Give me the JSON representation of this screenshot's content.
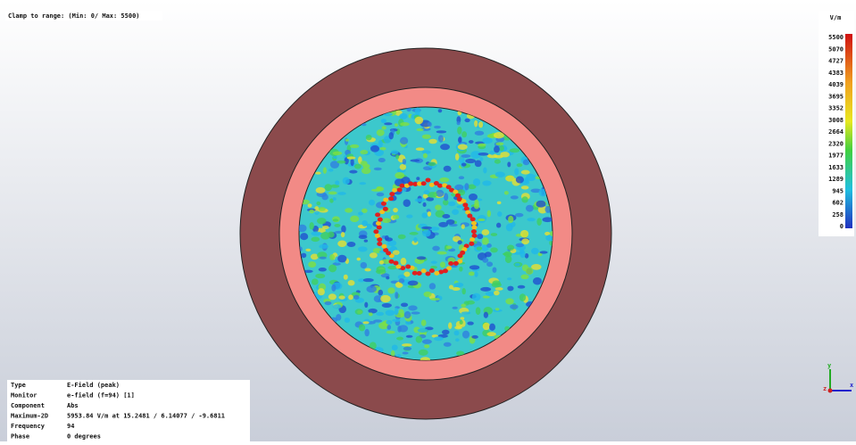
{
  "header": {
    "clamp": "Clamp to range: (Min: 0/ Max: 5500)"
  },
  "colorbar": {
    "unit": "V/m",
    "ticks": [
      5500,
      5070,
      4727,
      4383,
      4039,
      3695,
      3352,
      3008,
      2664,
      2320,
      1977,
      1633,
      1289,
      945,
      602,
      258,
      0
    ]
  },
  "info": {
    "rows": [
      [
        "Type",
        "E-Field (peak)"
      ],
      [
        "Monitor",
        "e-field (f=94) [1]"
      ],
      [
        "Component",
        "Abs"
      ],
      [
        "Maximum-2D",
        "5953.84 V/m at 15.2481 / 6.14077 / -9.6811"
      ],
      [
        "Frequency",
        "94"
      ],
      [
        "Phase",
        "0 degrees"
      ]
    ]
  },
  "axes": {
    "y": "y",
    "z": "z",
    "x": "x"
  }
}
